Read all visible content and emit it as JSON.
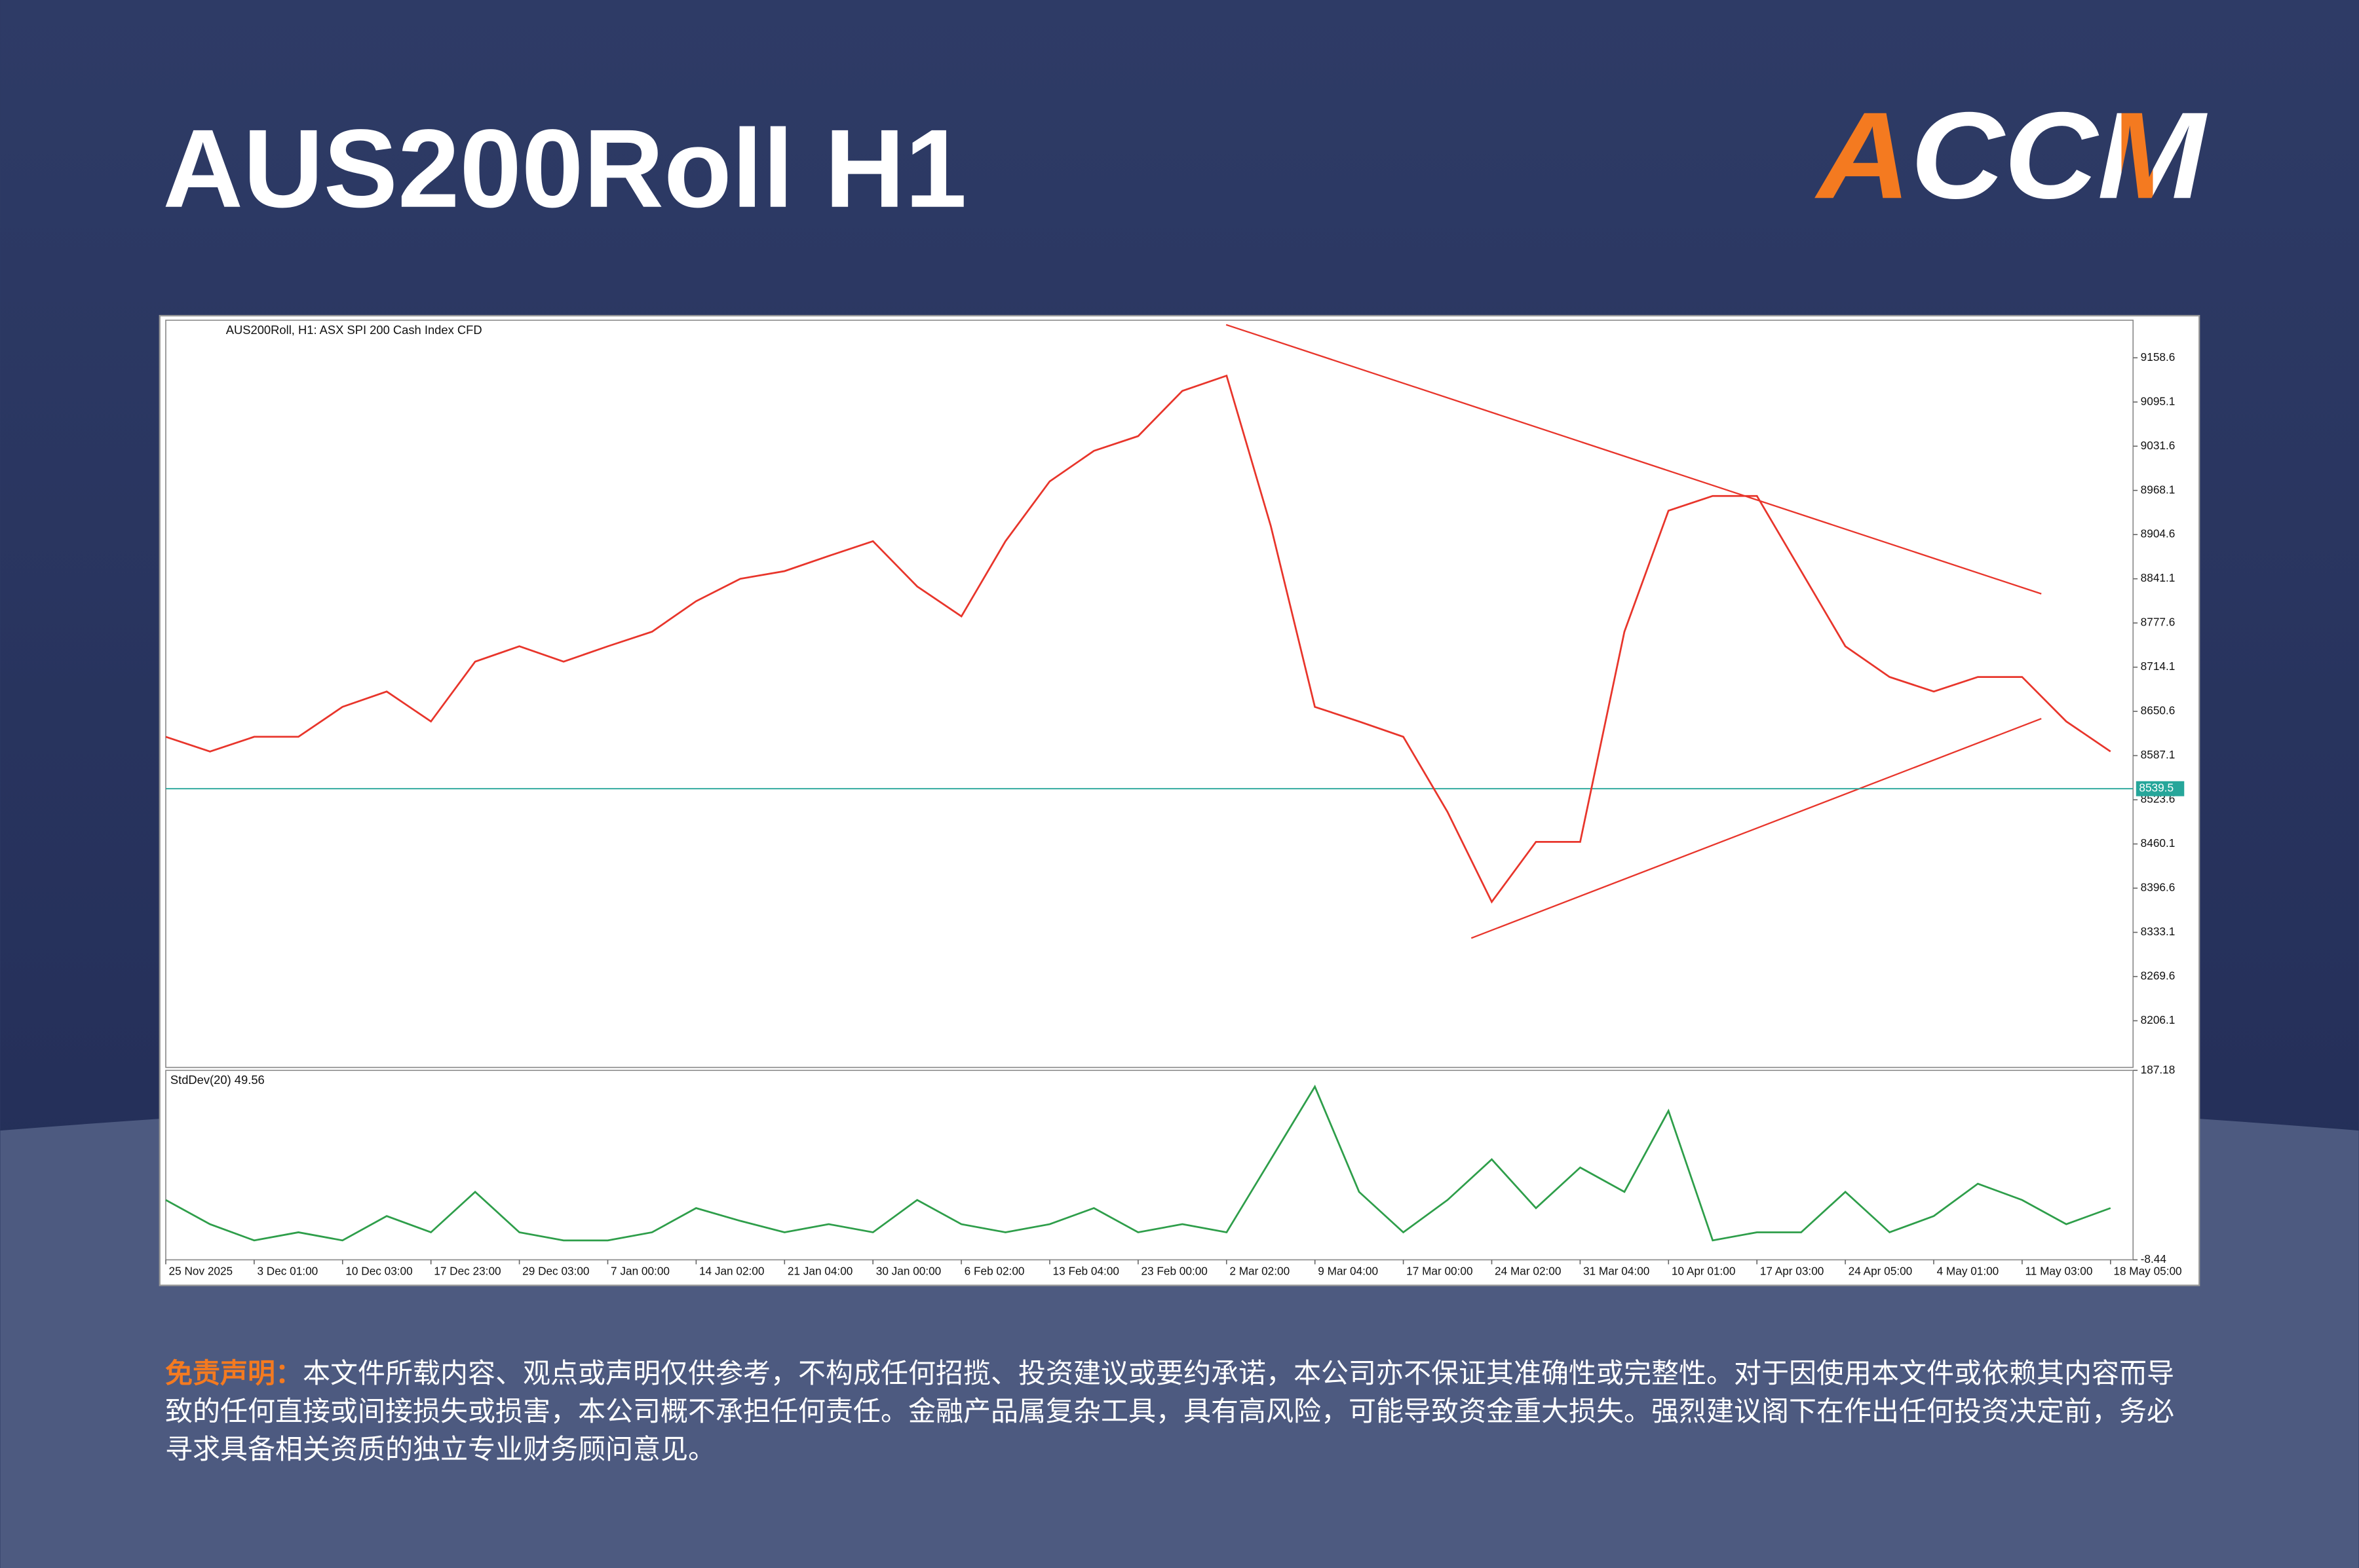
{
  "header": {
    "logo": "ACCM"
  },
  "chart_data": [
    {
      "type": "line",
      "title": "AUS200Roll H1",
      "subtitle": "AUS200Roll, H1:  ASX SPI 200 Cash Index CFD",
      "color": "#e8352b",
      "categories": [
        "25 Nov 2025",
        null,
        "3 Dec 01:00",
        null,
        "10 Dec 03:00",
        null,
        "17 Dec 23:00",
        null,
        "29 Dec 03:00",
        null,
        "7 Jan 00:00",
        null,
        "14 Jan 02:00",
        null,
        "21 Jan 04:00",
        null,
        "30 Jan 00:00",
        null,
        "6 Feb 02:00",
        null,
        "13 Feb 04:00",
        null,
        "23 Feb 00:00",
        null,
        "2 Mar 02:00",
        null,
        "9 Mar 04:00",
        null,
        "17 Mar 00:00",
        null,
        "24 Mar 02:00",
        null,
        "31 Mar 04:00",
        null,
        "10 Apr 01:00",
        null,
        "17 Apr 03:00",
        null,
        "24 Apr 05:00",
        null,
        "4 May 01:00",
        null,
        "11 May 03:00",
        null,
        "18 May 05:00"
      ],
      "values": [
        8614,
        8593,
        8614,
        8614,
        8657,
        8679,
        8636,
        8722,
        8744,
        8722,
        8744,
        8765,
        8809,
        8841,
        8852,
        8874,
        8895,
        8830,
        8787,
        8895,
        8981,
        9025,
        9046,
        9111,
        9133,
        8917,
        8657,
        8636,
        8614,
        8506,
        8377,
        8463,
        8463,
        8765,
        8939,
        8960,
        8960,
        8852,
        8744,
        8700,
        8679,
        8700,
        8700,
        8636,
        8593
      ],
      "ylim": [
        8139.1,
        9212.6
      ],
      "yticks": [
        9158.6,
        9095.1,
        9031.6,
        8968.1,
        8904.6,
        8841.1,
        8777.6,
        8714.1,
        8650.6,
        8587.1,
        8523.6,
        8460.1,
        8396.6,
        8333.1,
        8269.6,
        8206.1
      ],
      "last_price": 8539.5,
      "last_price_color": "#26a69a"
    },
    {
      "type": "line",
      "label": "StdDev(20) 49.56",
      "color": "#2e9e4a",
      "values": [
        53.4,
        28.3,
        11.6,
        20,
        11.6,
        36.7,
        20,
        61.8,
        20,
        11.6,
        11.6,
        20,
        45,
        31.7,
        20,
        28.3,
        20,
        53.4,
        28.3,
        20,
        28.3,
        45,
        20,
        28.3,
        20,
        95.2,
        170.4,
        61.8,
        20,
        53.4,
        95.2,
        45,
        86.9,
        61.8,
        145.4,
        11.6,
        20,
        20,
        61.8,
        20,
        36.7,
        70.1,
        53.4,
        28.3,
        45
      ],
      "ylim": [
        -8.44,
        187.18
      ],
      "yticks": [
        187.18,
        -8.44
      ]
    }
  ],
  "disclaimer": {
    "label": "免责声明：",
    "text": "本文件所载内容、观点或声明仅供参考，不构成任何招揽、投资建议或要约承诺，本公司亦不保证其准确性或完整性。对于因使用本文件或依赖其内容而导致的任何直接或间接损失或损害，本公司概不承担任何责任。金融产品属复杂工具，具有高风险，可能导致资金重大损失。强烈建议阁下在作出任何投资决定前，务必寻求具备相关资质的独立专业财务顾问意见。"
  }
}
